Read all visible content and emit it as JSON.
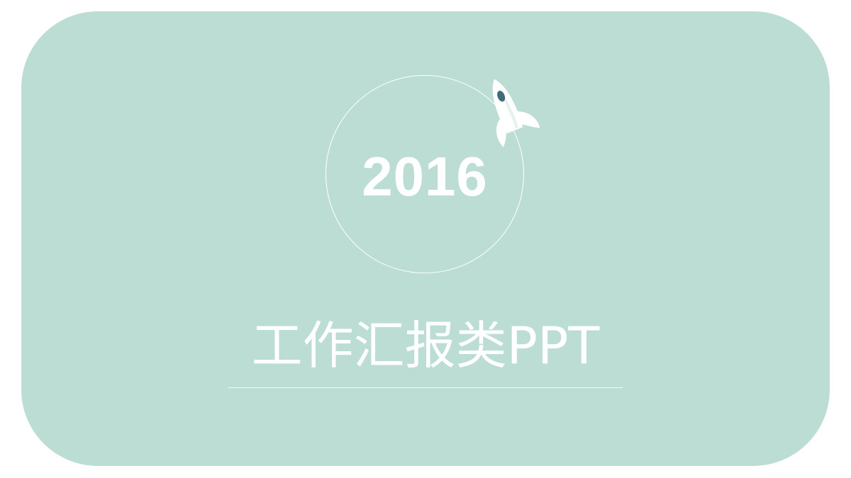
{
  "slide": {
    "year": "2016",
    "title": "工作汇报类PPT"
  },
  "colors": {
    "background": "#ffffff",
    "card": "#bcddd4",
    "text": "#ffffff",
    "rocket_window": "#3f6b7c"
  },
  "icons": {
    "rocket": "rocket-icon"
  }
}
